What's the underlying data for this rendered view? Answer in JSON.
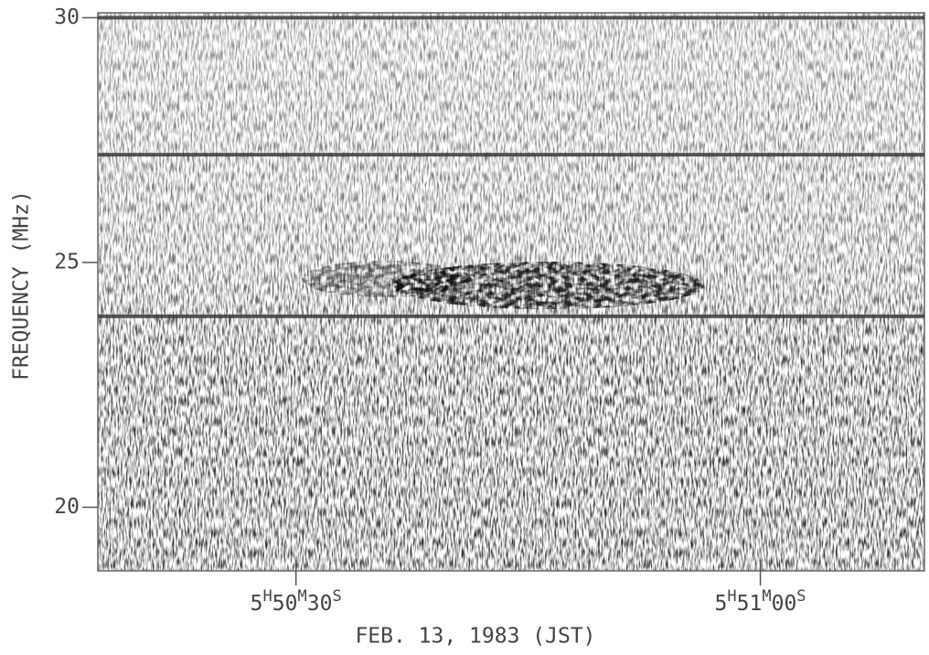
{
  "chart_data": {
    "type": "spectrogram",
    "xlabel": "FEB. 13, 1983 (JST)",
    "ylabel": "FREQUENCY (MHz)",
    "xlim": [
      21017.2,
      21070.6
    ],
    "xticks": [
      {
        "value": 21030,
        "label": "5H50M30S"
      },
      {
        "value": 21060,
        "label": "5H51M00S"
      }
    ],
    "ylim": [
      18.7,
      30.1
    ],
    "yticks": [
      20,
      25,
      30
    ],
    "interference_lines": [
      30.0,
      27.2,
      23.9
    ],
    "color": "#3a3a3a"
  }
}
